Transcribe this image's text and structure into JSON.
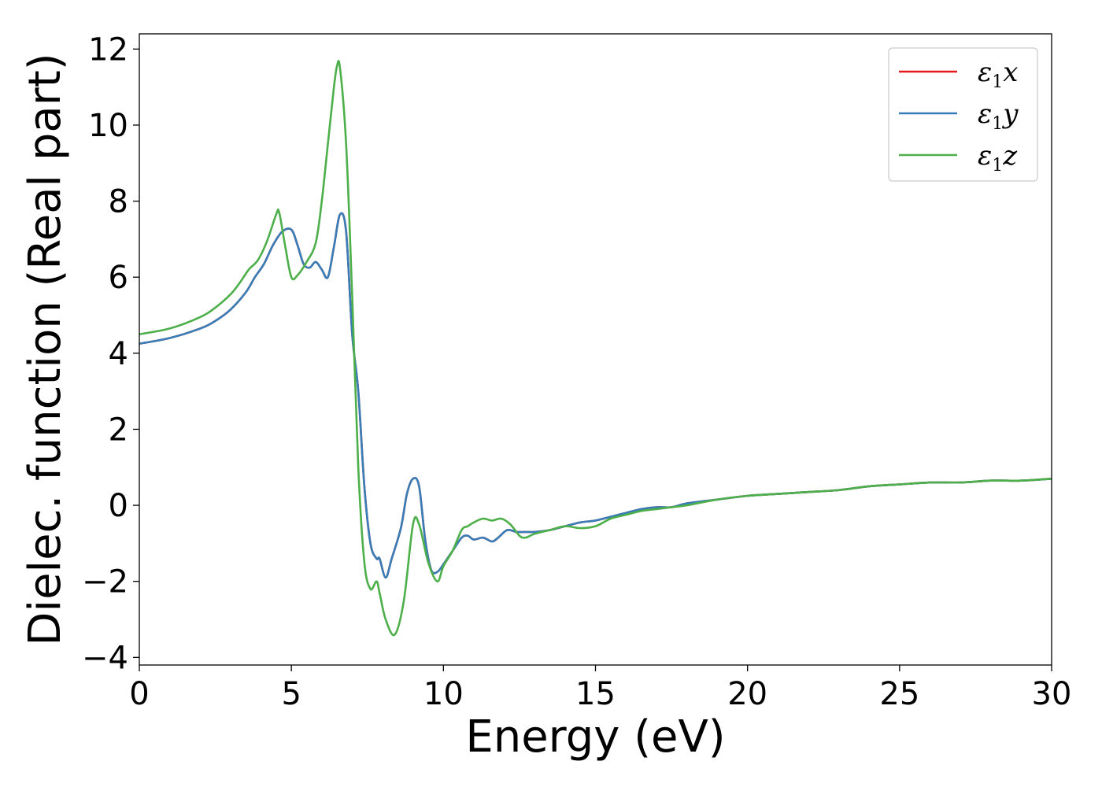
{
  "chart_data": {
    "type": "line",
    "xlabel": "Energy (eV)",
    "ylabel": "Dielec. function (Real part)",
    "xlim": [
      0,
      30
    ],
    "ylim": [
      -4.2,
      12.4
    ],
    "xticks": [
      0,
      5,
      10,
      15,
      20,
      25,
      30
    ],
    "yticks": [
      -4,
      -2,
      0,
      2,
      4,
      6,
      8,
      10,
      12
    ],
    "ytick_labels": [
      "−4",
      "−2",
      "0",
      "2",
      "4",
      "6",
      "8",
      "10",
      "12"
    ],
    "grid": false,
    "legend": {
      "position": "top-right",
      "entries": [
        {
          "symbol": "ε",
          "sub": "1",
          "axis": "x",
          "color": "#e41a1c"
        },
        {
          "symbol": "ε",
          "sub": "1",
          "axis": "y",
          "color": "#377eb8"
        },
        {
          "symbol": "ε",
          "sub": "1",
          "axis": "z",
          "color": "#4daf4a"
        }
      ]
    },
    "series": [
      {
        "color": "#e41a1c",
        "x": [
          0,
          1,
          2,
          2.5,
          3,
          3.5,
          3.8,
          4.1,
          4.4,
          4.7,
          5.0,
          5.2,
          5.4,
          5.6,
          5.8,
          6.0,
          6.2,
          6.4,
          6.6,
          6.8,
          7.0,
          7.2,
          7.4,
          7.6,
          7.8,
          7.9,
          8.1,
          8.3,
          8.6,
          8.8,
          9.0,
          9.2,
          9.4,
          9.6,
          9.8,
          10.0,
          10.3,
          10.6,
          10.8,
          11.0,
          11.3,
          11.6,
          11.8,
          12.1,
          12.4,
          12.7,
          13.0,
          13.5,
          14.0,
          14.5,
          15.0,
          15.5,
          16.0,
          16.5,
          17.0,
          17.5,
          18.0,
          19.0,
          20.0,
          21.0,
          22.0,
          23.0,
          24.0,
          25.0,
          26.0,
          27.0,
          28.0,
          29.0,
          30.0
        ],
        "y": [
          4.25,
          4.4,
          4.65,
          4.85,
          5.15,
          5.6,
          6.0,
          6.35,
          6.85,
          7.2,
          7.25,
          6.85,
          6.35,
          6.25,
          6.4,
          6.2,
          6.0,
          6.8,
          7.65,
          7.2,
          4.5,
          3.0,
          0.5,
          -1.0,
          -1.4,
          -1.4,
          -1.9,
          -1.4,
          -0.6,
          0.3,
          0.7,
          0.5,
          -0.9,
          -1.7,
          -1.75,
          -1.55,
          -1.2,
          -0.85,
          -0.8,
          -0.9,
          -0.85,
          -0.95,
          -0.85,
          -0.65,
          -0.7,
          -0.7,
          -0.7,
          -0.65,
          -0.55,
          -0.45,
          -0.4,
          -0.3,
          -0.2,
          -0.1,
          -0.05,
          -0.05,
          0.05,
          0.15,
          0.25,
          0.3,
          0.35,
          0.4,
          0.5,
          0.55,
          0.6,
          0.6,
          0.65,
          0.65,
          0.7
        ]
      },
      {
        "color": "#377eb8",
        "x": [
          0,
          1,
          2,
          2.5,
          3,
          3.5,
          3.8,
          4.1,
          4.4,
          4.7,
          5.0,
          5.2,
          5.4,
          5.6,
          5.8,
          6.0,
          6.2,
          6.4,
          6.6,
          6.8,
          7.0,
          7.2,
          7.4,
          7.6,
          7.8,
          7.9,
          8.1,
          8.3,
          8.6,
          8.8,
          9.0,
          9.2,
          9.4,
          9.6,
          9.8,
          10.0,
          10.3,
          10.6,
          10.8,
          11.0,
          11.3,
          11.6,
          11.8,
          12.1,
          12.4,
          12.7,
          13.0,
          13.5,
          14.0,
          14.5,
          15.0,
          15.5,
          16.0,
          16.5,
          17.0,
          17.5,
          18.0,
          19.0,
          20.0,
          21.0,
          22.0,
          23.0,
          24.0,
          25.0,
          26.0,
          27.0,
          28.0,
          29.0,
          30.0
        ],
        "y": [
          4.25,
          4.4,
          4.65,
          4.85,
          5.15,
          5.6,
          6.0,
          6.35,
          6.85,
          7.2,
          7.25,
          6.85,
          6.35,
          6.25,
          6.4,
          6.2,
          6.0,
          6.8,
          7.65,
          7.2,
          4.5,
          3.0,
          0.5,
          -1.0,
          -1.4,
          -1.4,
          -1.9,
          -1.4,
          -0.6,
          0.3,
          0.7,
          0.5,
          -0.9,
          -1.7,
          -1.75,
          -1.55,
          -1.2,
          -0.85,
          -0.8,
          -0.9,
          -0.85,
          -0.95,
          -0.85,
          -0.65,
          -0.7,
          -0.7,
          -0.7,
          -0.65,
          -0.55,
          -0.45,
          -0.4,
          -0.3,
          -0.2,
          -0.1,
          -0.05,
          -0.05,
          0.05,
          0.15,
          0.25,
          0.3,
          0.35,
          0.4,
          0.5,
          0.55,
          0.6,
          0.6,
          0.65,
          0.65,
          0.7
        ]
      },
      {
        "color": "#4daf4a",
        "x": [
          0,
          1,
          2,
          2.5,
          3,
          3.3,
          3.6,
          3.9,
          4.2,
          4.5,
          4.6,
          4.8,
          5.0,
          5.2,
          5.5,
          5.8,
          6.0,
          6.2,
          6.4,
          6.5,
          6.6,
          6.8,
          7.0,
          7.2,
          7.4,
          7.6,
          7.8,
          7.9,
          8.1,
          8.4,
          8.7,
          9.0,
          9.2,
          9.5,
          9.8,
          10.0,
          10.3,
          10.6,
          10.8,
          11.0,
          11.3,
          11.6,
          11.9,
          12.2,
          12.5,
          12.7,
          13.0,
          13.5,
          14.0,
          14.5,
          15.0,
          15.5,
          16.0,
          16.5,
          17.0,
          17.5,
          18.0,
          19.0,
          20.0,
          21.0,
          22.0,
          23.0,
          24.0,
          25.0,
          26.0,
          27.0,
          28.0,
          29.0,
          30.0
        ],
        "y": [
          4.5,
          4.65,
          4.95,
          5.2,
          5.55,
          5.85,
          6.2,
          6.45,
          6.95,
          7.65,
          7.7,
          6.8,
          6.0,
          6.05,
          6.4,
          6.9,
          8.0,
          9.5,
          11.0,
          11.55,
          11.5,
          9.5,
          5.5,
          1.0,
          -1.5,
          -2.2,
          -2.0,
          -2.3,
          -3.0,
          -3.4,
          -2.5,
          -0.5,
          -0.5,
          -1.5,
          -2.0,
          -1.6,
          -1.2,
          -0.65,
          -0.55,
          -0.45,
          -0.35,
          -0.4,
          -0.35,
          -0.5,
          -0.8,
          -0.85,
          -0.75,
          -0.65,
          -0.55,
          -0.6,
          -0.55,
          -0.35,
          -0.25,
          -0.15,
          -0.1,
          -0.05,
          0.0,
          0.15,
          0.25,
          0.3,
          0.35,
          0.4,
          0.5,
          0.55,
          0.6,
          0.6,
          0.65,
          0.65,
          0.7
        ]
      }
    ]
  }
}
